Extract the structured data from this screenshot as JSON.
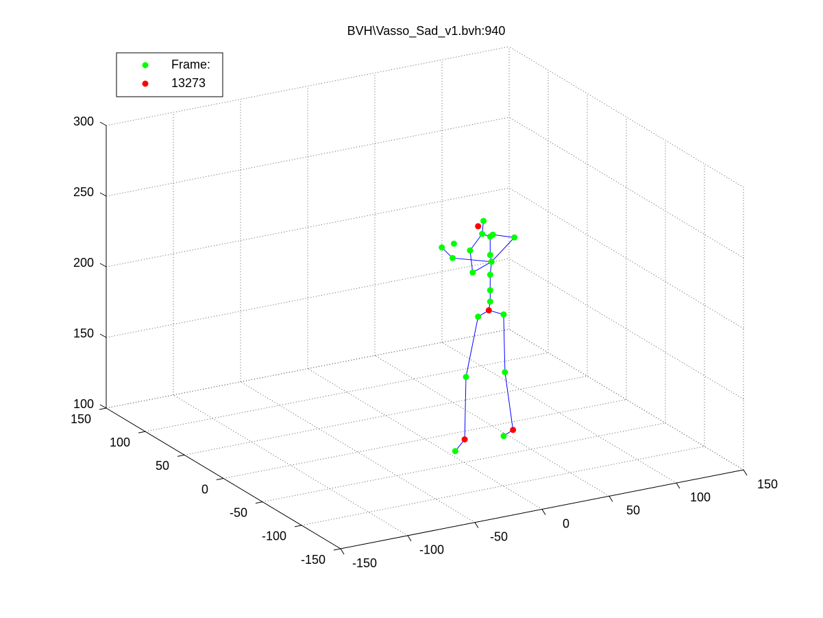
{
  "chart_data": {
    "type": "scatter3d",
    "title": "BVH\\Vasso_Sad_v1.bvh:940",
    "xlim": [
      -150,
      150
    ],
    "xticks": [
      -150,
      -100,
      -50,
      0,
      50,
      100,
      150
    ],
    "ylim": [
      -150,
      150
    ],
    "yticks": [
      -150,
      -100,
      -50,
      0,
      50,
      100,
      150
    ],
    "zlim": [
      100,
      300
    ],
    "zticks": [
      100,
      150,
      200,
      250,
      300
    ],
    "grid": true,
    "legend": "upper left",
    "series": [
      {
        "name": "Frame:",
        "color": "#00ff00",
        "mode": "markers",
        "x": [
          11,
          47,
          19,
          48,
          28,
          47,
          37,
          37,
          37,
          38,
          24,
          22,
          9,
          1,
          10,
          37,
          37,
          31,
          32,
          39,
          55
        ],
        "y": [
          -20,
          -20,
          -20,
          -20,
          -20,
          -20,
          -20,
          -20,
          -20,
          -20,
          -20,
          -20,
          -20,
          -20,
          -20,
          -20,
          -20,
          -20,
          -20,
          -20,
          -20
        ],
        "z": [
          96,
          100,
          147,
          145,
          188,
          186,
          197,
          205,
          216,
          225,
          220,
          236,
          233,
          242,
          243,
          230,
          243,
          246,
          255,
          244,
          239
        ]
      },
      {
        "name": "13273",
        "color": "#ff0000",
        "mode": "markers",
        "x": [
          18,
          54,
          36,
          28
        ],
        "y": [
          -20,
          -20,
          -20,
          -20
        ],
        "z": [
          103,
          103,
          191,
          252
        ]
      },
      {
        "color": "#0000ff",
        "mode": "lines",
        "x": [
          11,
          18,
          19,
          28,
          36,
          47,
          48,
          54,
          47,
          null,
          36,
          37,
          37,
          37,
          38,
          37,
          37,
          31,
          32,
          null,
          37,
          39,
          55,
          38,
          9,
          1,
          null,
          31,
          22,
          24,
          38
        ],
        "y": [
          -20,
          -20,
          -20,
          -20,
          -20,
          -20,
          -20,
          -20,
          -20,
          null,
          -20,
          -20,
          -20,
          -20,
          -20,
          -20,
          -20,
          -20,
          -20,
          null,
          -20,
          -20,
          -20,
          -20,
          -20,
          -20,
          null,
          -20,
          -20,
          -20,
          -20
        ],
        "z": [
          96,
          103,
          147,
          188,
          191,
          186,
          145,
          103,
          100,
          null,
          191,
          197,
          205,
          216,
          225,
          230,
          243,
          246,
          255,
          null,
          243,
          244,
          239,
          225,
          233,
          242,
          null,
          246,
          236,
          220,
          225
        ]
      }
    ]
  }
}
